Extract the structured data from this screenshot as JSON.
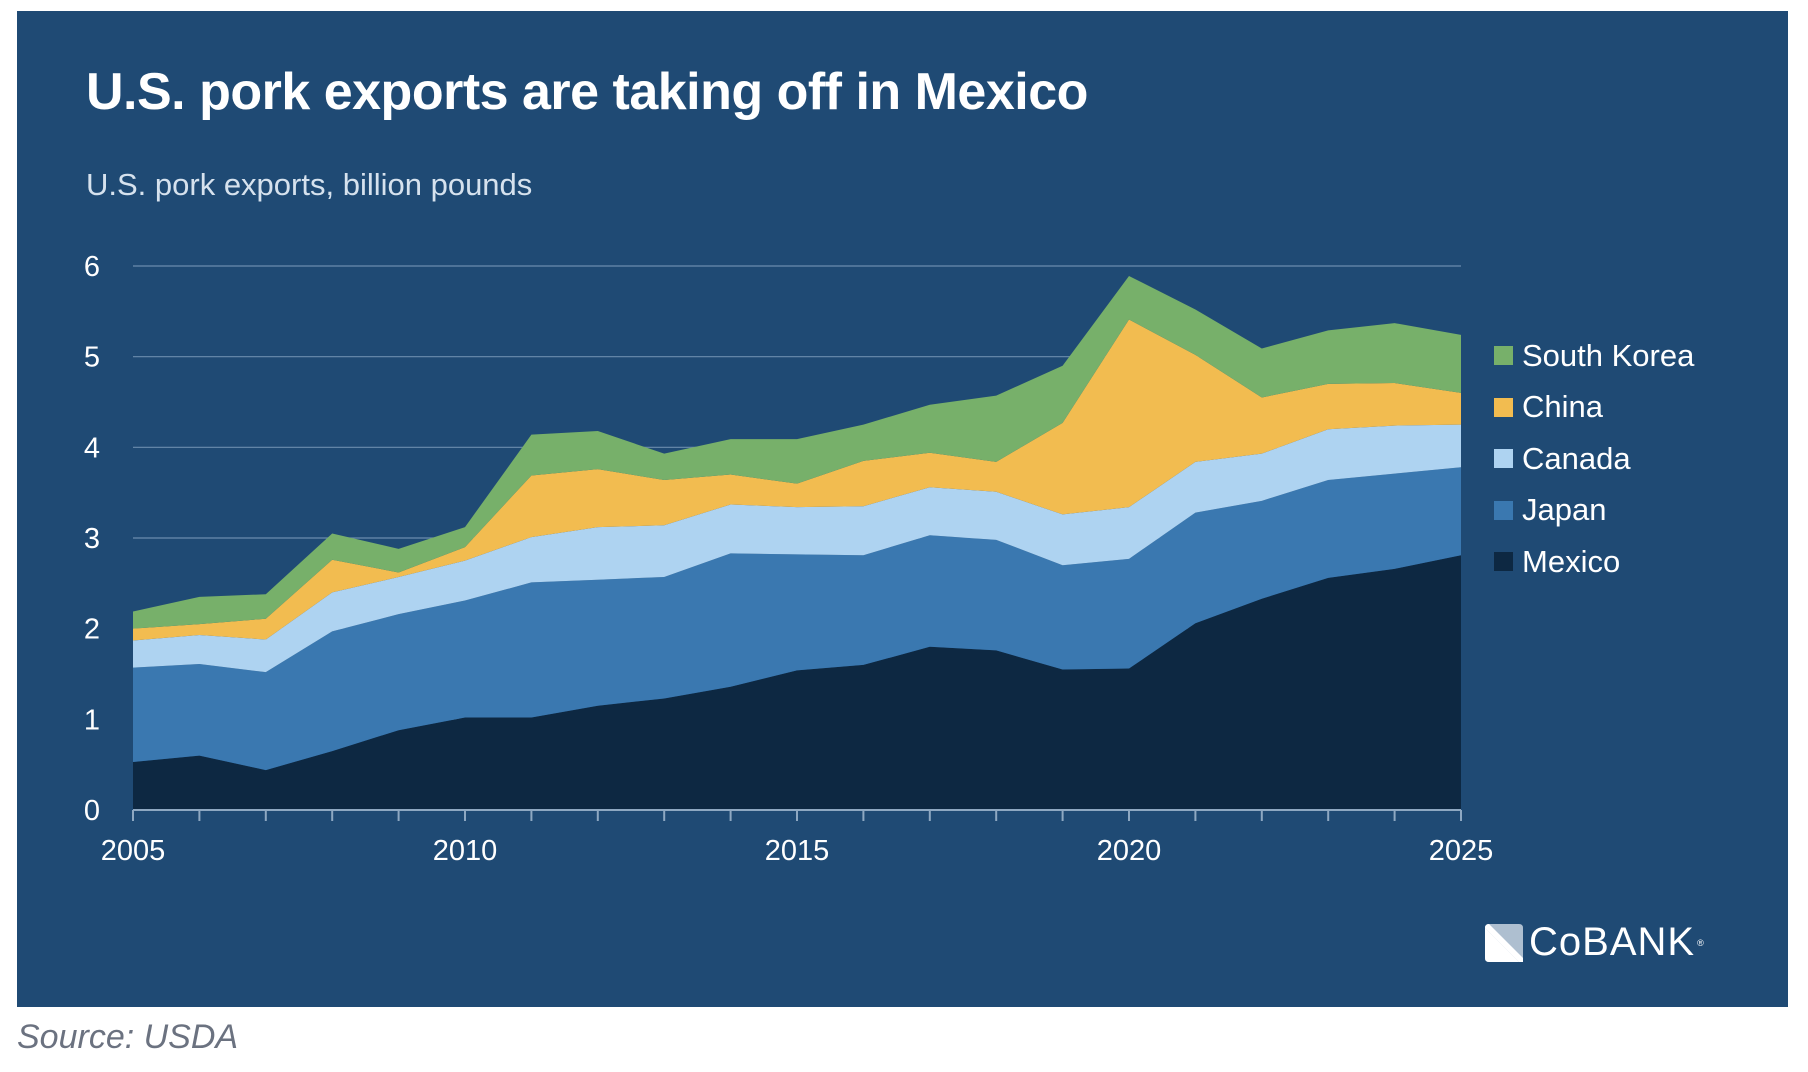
{
  "header": {
    "title": "U.S. pork exports are taking off in Mexico",
    "subtitle": "U.S. pork exports, billion pounds"
  },
  "logo": {
    "text": "CoBANK",
    "registered": "®",
    "icon": "cobank-logo-icon"
  },
  "source": "Source: USDA",
  "chart_data": {
    "type": "area",
    "stacked": true,
    "title": "U.S. pork exports are taking off in Mexico",
    "subtitle": "U.S. pork exports, billion pounds",
    "xlabel": "",
    "ylabel": "billion pounds",
    "x": [
      2005,
      2006,
      2007,
      2008,
      2009,
      2010,
      2011,
      2012,
      2013,
      2014,
      2015,
      2016,
      2017,
      2018,
      2019,
      2020,
      2021,
      2022,
      2023,
      2024,
      2025
    ],
    "xlim": [
      2005,
      2025
    ],
    "ylim": [
      0,
      6
    ],
    "x_tick_labels": [
      "2005",
      "2010",
      "2015",
      "2020",
      "2025"
    ],
    "y_tick_labels": [
      "0",
      "1",
      "2",
      "3",
      "4",
      "5",
      "6"
    ],
    "grid": "horizontal",
    "legend_position": "right",
    "series": [
      {
        "name": "Mexico",
        "color": "#0d2842",
        "values": [
          0.53,
          0.6,
          0.44,
          0.65,
          0.88,
          1.02,
          1.02,
          1.15,
          1.23,
          1.36,
          1.54,
          1.6,
          1.8,
          1.76,
          1.55,
          1.56,
          2.06,
          2.33,
          2.56,
          2.66,
          2.81
        ]
      },
      {
        "name": "Japan",
        "color": "#3a78b0",
        "values": [
          1.04,
          1.01,
          1.08,
          1.32,
          1.28,
          1.29,
          1.49,
          1.39,
          1.34,
          1.47,
          1.28,
          1.21,
          1.23,
          1.22,
          1.15,
          1.21,
          1.22,
          1.08,
          1.08,
          1.05,
          0.97
        ]
      },
      {
        "name": "Canada",
        "color": "#aed3f1",
        "values": [
          0.3,
          0.32,
          0.36,
          0.43,
          0.41,
          0.44,
          0.5,
          0.58,
          0.57,
          0.54,
          0.52,
          0.54,
          0.53,
          0.53,
          0.56,
          0.57,
          0.56,
          0.52,
          0.56,
          0.53,
          0.47
        ]
      },
      {
        "name": "China",
        "color": "#f2bc50",
        "values": [
          0.13,
          0.12,
          0.23,
          0.36,
          0.05,
          0.15,
          0.68,
          0.64,
          0.5,
          0.33,
          0.26,
          0.5,
          0.38,
          0.33,
          1.01,
          2.07,
          1.18,
          0.62,
          0.5,
          0.47,
          0.35
        ]
      },
      {
        "name": "South Korea",
        "color": "#77b06a",
        "values": [
          0.19,
          0.3,
          0.27,
          0.29,
          0.26,
          0.22,
          0.45,
          0.42,
          0.29,
          0.39,
          0.49,
          0.4,
          0.53,
          0.73,
          0.63,
          0.48,
          0.5,
          0.54,
          0.59,
          0.66,
          0.64
        ]
      }
    ],
    "legend_order": [
      "South Korea",
      "China",
      "Canada",
      "Japan",
      "Mexico"
    ]
  }
}
